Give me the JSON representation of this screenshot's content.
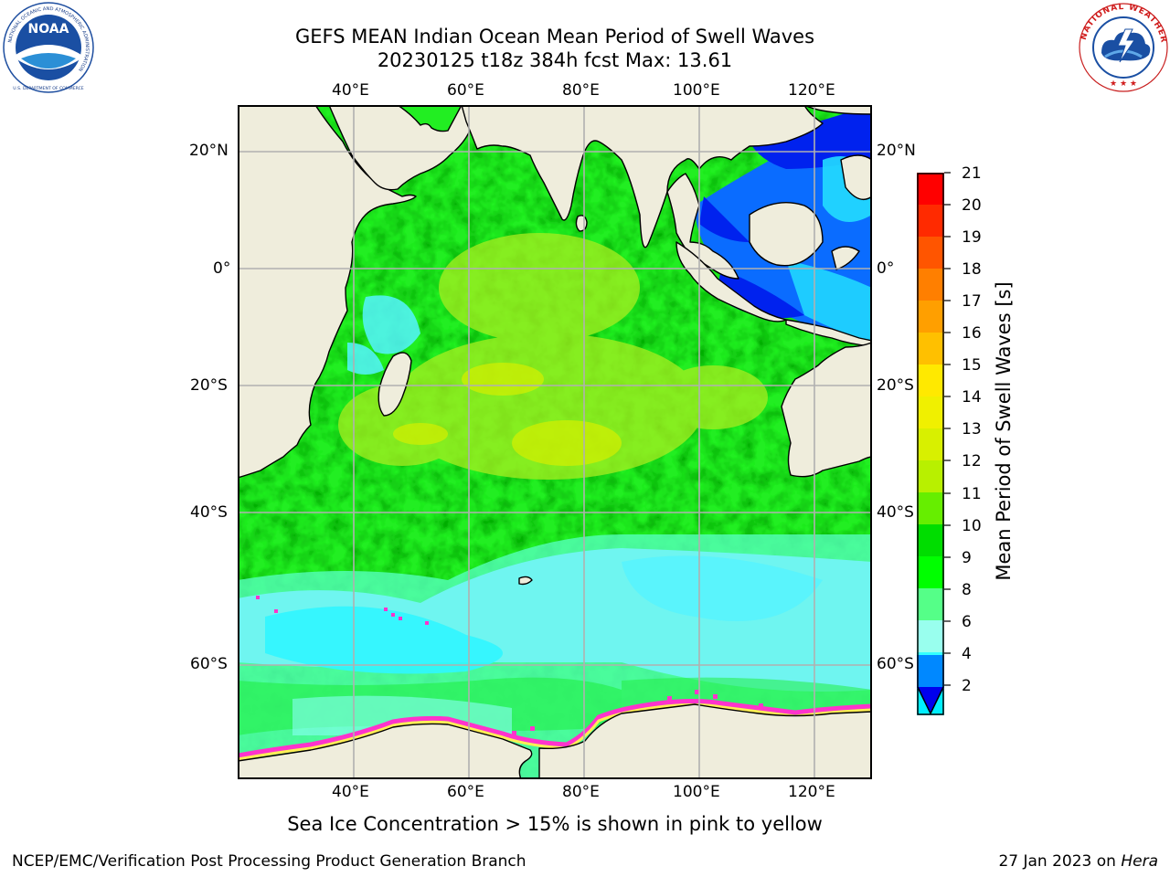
{
  "title": {
    "line1": "GEFS MEAN Indian Ocean Mean Period of Swell Waves",
    "line2": "20230125 t18z 384h fcst   Max: 13.61"
  },
  "logos": {
    "left": {
      "name": "NOAA",
      "ring_text": "NATIONAL OCEANIC AND ATMOSPHERIC ADMINISTRATION",
      "bottom_text": "U.S. DEPARTMENT OF COMMERCE"
    },
    "right": {
      "ring_text": "NATIONAL WEATHER SERVICE"
    }
  },
  "map": {
    "top_lon_labels": [
      "40°E",
      "60°E",
      "80°E",
      "100°E",
      "120°E"
    ],
    "bottom_lon_labels": [
      "40°E",
      "60°E",
      "80°E",
      "100°E",
      "120°E"
    ],
    "left_lat_labels": [
      "20°N",
      "0°",
      "20°S",
      "40°S",
      "60°S"
    ],
    "right_lat_labels": [
      "20°N",
      "0°",
      "20°S",
      "40°S",
      "60°S"
    ],
    "land_color": "#efeddc",
    "grid_color": "#b0b0b0"
  },
  "colorbar": {
    "label": "Mean Period of Swell Waves [s]",
    "ticks": [
      "21",
      "20",
      "19",
      "18",
      "17",
      "16",
      "15",
      "14",
      "13",
      "12",
      "11",
      "10",
      "9",
      "8",
      "6",
      "4",
      "2"
    ],
    "colors_top_to_bottom": [
      "#ff0000",
      "#ff2a00",
      "#ff5500",
      "#ff7f00",
      "#ff9f00",
      "#ffc000",
      "#ffe900",
      "#f0f000",
      "#d8f000",
      "#b8f000",
      "#66ee00",
      "#00dd00",
      "#00ff00",
      "#55ff88",
      "#99ffee",
      "#33ffff",
      "#00eeff",
      "#0088ff"
    ],
    "extend_color": "#0000ee"
  },
  "caption": "Sea Ice Concentration > 15% is shown in pink to yellow",
  "footer": {
    "left": "NCEP/EMC/Verification Post Processing Product Generation Branch",
    "right_date": "27 Jan 2023 on",
    "right_machine": "Hera"
  }
}
